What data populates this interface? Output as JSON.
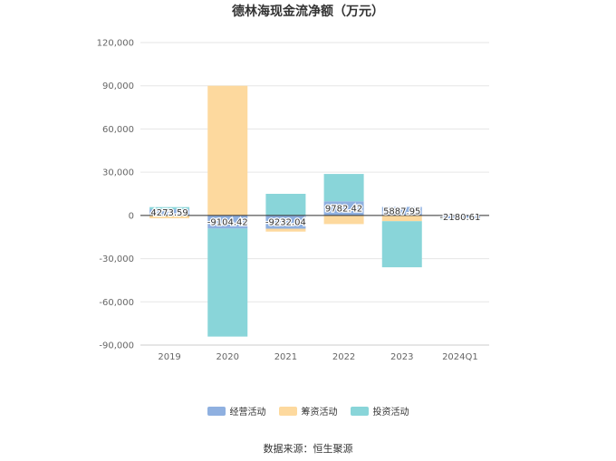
{
  "title": "德林海现金流净额（万元）",
  "source": "数据来源：恒生聚源",
  "chart_data": {
    "type": "bar",
    "stacked": true,
    "categories": [
      "2019",
      "2020",
      "2021",
      "2022",
      "2023",
      "2024Q1"
    ],
    "ylim": [
      -90000,
      120000
    ],
    "yticks": [
      120000,
      90000,
      60000,
      30000,
      0,
      -30000,
      -60000,
      -90000
    ],
    "ytick_labels": [
      "120,000",
      "90,000",
      "60,000",
      "30,000",
      "0",
      "-30,000",
      "-60,000",
      "-90,000"
    ],
    "grid": true,
    "legend_position": "bottom",
    "series": [
      {
        "name": "经营活动",
        "color": "#8fb0e0",
        "values": [
          4273.59,
          -9104.42,
          -9232.04,
          9782.42,
          5887.95,
          -2180.61
        ]
      },
      {
        "name": "筹资活动",
        "color": "#fdd99e",
        "values": [
          -2000,
          90000,
          -2000,
          -6000,
          -4000,
          -300
        ]
      },
      {
        "name": "投资活动",
        "color": "#89d5d9",
        "values": [
          1500,
          -75000,
          15000,
          19000,
          -32000,
          -100
        ]
      }
    ],
    "data_labels": [
      "4273.59",
      "-9104.42",
      "-9232.04",
      "9782.42",
      "5887.95",
      "-2180.61"
    ]
  }
}
